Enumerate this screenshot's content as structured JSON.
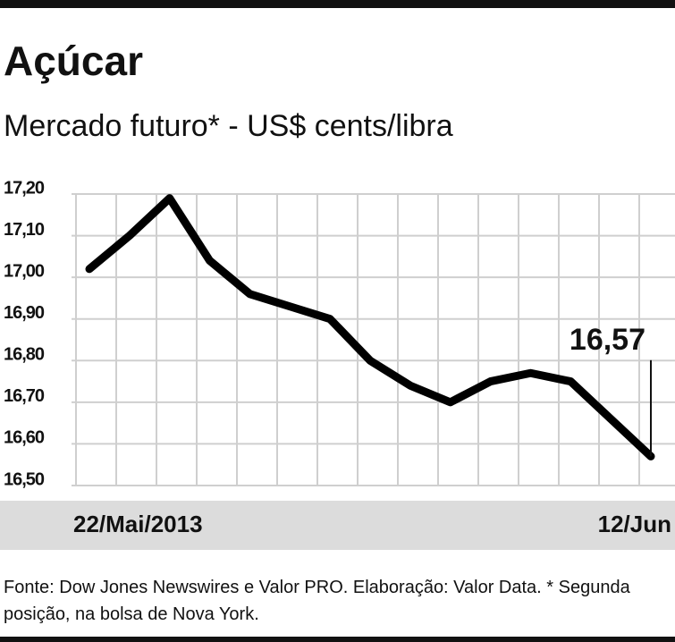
{
  "chart_data": {
    "type": "line",
    "title": "Açúcar",
    "subtitle": "Mercado futuro* - US$ cents/libra",
    "categories": [
      "22/Mai/2013",
      null,
      null,
      null,
      null,
      null,
      null,
      null,
      null,
      null,
      null,
      null,
      null,
      null,
      "12/Jun"
    ],
    "series": [
      {
        "name": "Açúcar",
        "color": "#000000",
        "values": [
          17.02,
          17.1,
          17.19,
          17.04,
          16.96,
          16.93,
          16.9,
          16.8,
          16.74,
          16.7,
          16.75,
          16.77,
          16.75,
          16.66,
          16.57
        ],
        "value_labels": [
          null,
          null,
          null,
          null,
          null,
          null,
          null,
          null,
          null,
          null,
          null,
          null,
          null,
          null,
          "16,57"
        ]
      }
    ],
    "ylim": [
      16.5,
      17.2
    ],
    "yticks": [
      {
        "value": 16.5,
        "label": "16,50"
      },
      {
        "value": 16.6,
        "label": "16,60"
      },
      {
        "value": 16.7,
        "label": "16,70"
      },
      {
        "value": 16.8,
        "label": "16,80"
      },
      {
        "value": 16.9,
        "label": "16,90"
      },
      {
        "value": 17.0,
        "label": "17,00"
      },
      {
        "value": 17.1,
        "label": "17,10"
      },
      {
        "value": 17.2,
        "label": "17,20"
      }
    ],
    "grid": true,
    "source": "Fonte: Dow Jones Newswires e Valor PRO. Elaboração: Valor Data. * Segunda posição, na bolsa de Nova York."
  }
}
